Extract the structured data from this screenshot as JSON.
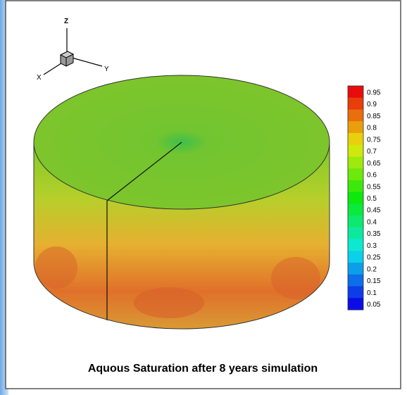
{
  "axes": {
    "z": "Z",
    "x": "X",
    "y": "Y"
  },
  "colorbar": {
    "labels": [
      "0.95",
      "0.9",
      "0.85",
      "0.8",
      "0.75",
      "0.7",
      "0.65",
      "0.6",
      "0.55",
      "0.5",
      "0.45",
      "0.4",
      "0.35",
      "0.3",
      "0.25",
      "0.2",
      "0.15",
      "0.1",
      "0.05"
    ]
  },
  "caption": "Aquous Saturation after 8 years simulation"
}
